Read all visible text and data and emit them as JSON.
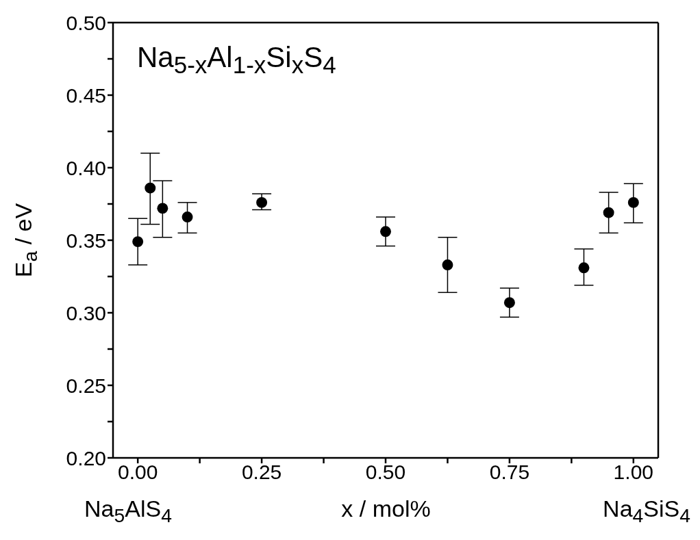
{
  "chart_data": {
    "type": "scatter",
    "xlabel": "x / mol%",
    "ylabel": "E$_{a}$ / eV",
    "annotations": [
      "Na$_{5-x}$Al$_{1-x}$Si$_{x}$S$_{4}$",
      "Na$_{5}$AlS$_{4}$",
      "Na$_{4}$SiS$_{4}$"
    ],
    "x": [
      0,
      0.025,
      0.05,
      0.1,
      0.25,
      0.5,
      0.625,
      0.75,
      0.9,
      0.95,
      1
    ],
    "series": [
      {
        "color": "#000000",
        "values": [
          0.349,
          0.386,
          0.372,
          0.366,
          0.376,
          0.356,
          0.333,
          0.307,
          0.331,
          0.369,
          0.376
        ],
        "errors": [
          [
            0.333,
            0.365
          ],
          [
            0.361,
            0.41
          ],
          [
            0.352,
            0.391
          ],
          [
            0.355,
            0.376
          ],
          [
            0.371,
            0.382
          ],
          [
            0.346,
            0.366
          ],
          [
            0.314,
            0.352
          ],
          [
            0.297,
            0.317
          ],
          [
            0.319,
            0.344
          ],
          [
            0.355,
            0.383
          ],
          [
            0.362,
            0.389
          ]
        ]
      }
    ],
    "xlim": [
      -0.05,
      1.05
    ],
    "xticks": [
      {
        "value": 0,
        "label": "0.00"
      },
      {
        "value": 0.125,
        "label": null
      },
      {
        "value": 0.25,
        "label": "0.25"
      },
      {
        "value": 0.375,
        "label": null
      },
      {
        "value": 0.5,
        "label": "0.50"
      },
      {
        "value": 0.625,
        "label": null
      },
      {
        "value": 0.75,
        "label": "0.75"
      },
      {
        "value": 0.875,
        "label": null
      },
      {
        "value": 1,
        "label": "1.00"
      }
    ],
    "ylim": [
      0.2,
      0.5
    ],
    "yticks": [
      {
        "value": 0.2,
        "label": "0.20"
      },
      {
        "value": 0.225,
        "label": null
      },
      {
        "value": 0.25,
        "label": "0.25"
      },
      {
        "value": 0.275,
        "label": null
      },
      {
        "value": 0.3,
        "label": "0.30"
      },
      {
        "value": 0.325,
        "label": null
      },
      {
        "value": 0.35,
        "label": "0.35"
      },
      {
        "value": 0.375,
        "label": null
      },
      {
        "value": 0.4,
        "label": "0.40"
      },
      {
        "value": 0.425,
        "label": null
      },
      {
        "value": 0.45,
        "label": "0.45"
      },
      {
        "value": 0.475,
        "label": null
      },
      {
        "value": 0.5,
        "label": "0.50"
      }
    ],
    "grid": false,
    "legend": false,
    "marker": "circle"
  }
}
